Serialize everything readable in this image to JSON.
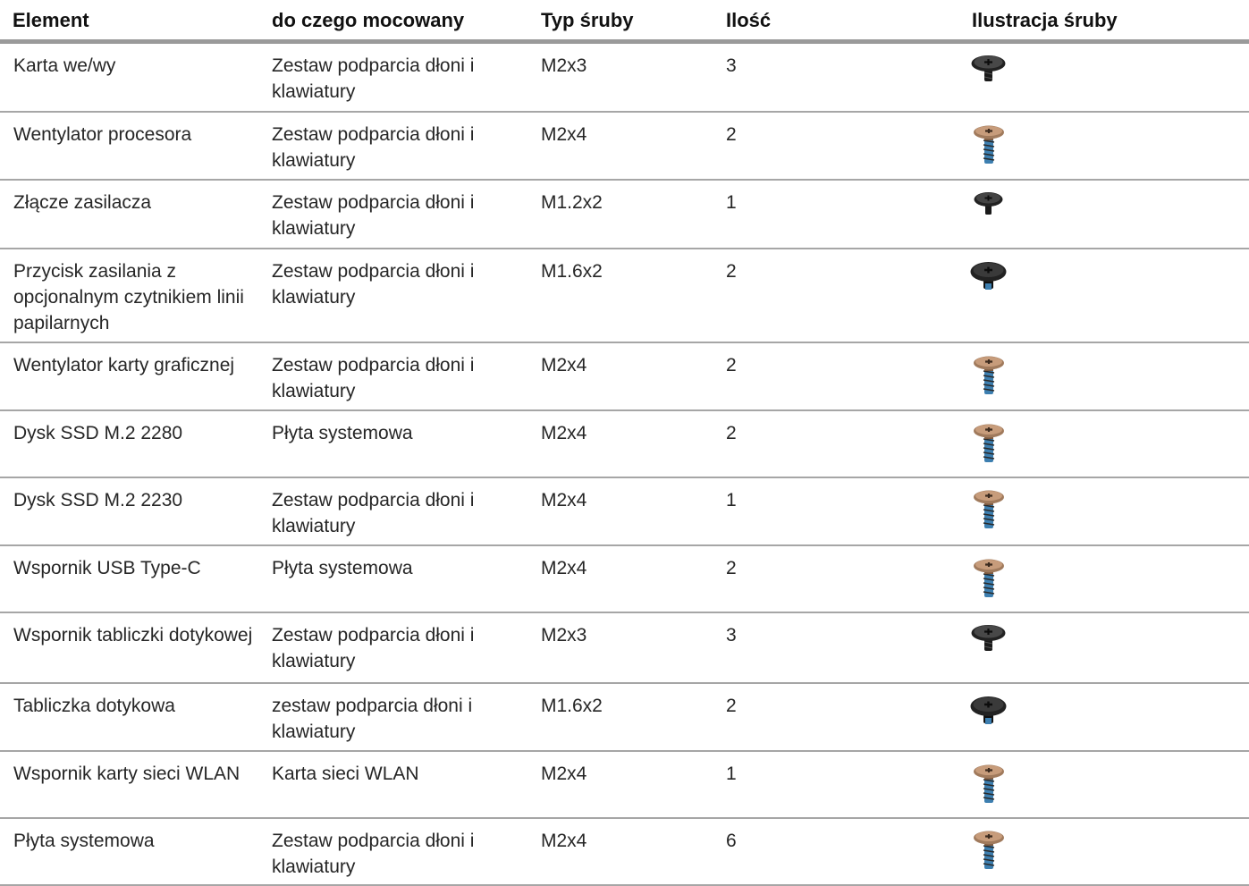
{
  "headers": {
    "element": "Element",
    "attached_to": "do czego mocowany",
    "screw_type": "Typ śruby",
    "quantity": "Ilość",
    "illustration": "Ilustracja śruby"
  },
  "rows": [
    {
      "element": "Karta we/wy",
      "attached_to": "Zestaw podparcia dłoni i klawiatury",
      "screw_type": "M2x3",
      "quantity": "3",
      "icon": "screw-black-short-icon"
    },
    {
      "element": "Wentylator procesora",
      "attached_to": "Zestaw podparcia dłoni i klawiatury",
      "screw_type": "M2x4",
      "quantity": "2",
      "icon": "screw-bronze-long-icon"
    },
    {
      "element": "Złącze zasilacza",
      "attached_to": "Zestaw podparcia dłoni i klawiatury",
      "screw_type": "M1.2x2",
      "quantity": "1",
      "icon": "screw-black-small-icon"
    },
    {
      "element": "Przycisk zasilania z opcjonalnym czytnikiem linii papilarnych",
      "attached_to": "Zestaw podparcia dłoni i klawiatury",
      "screw_type": "M1.6x2",
      "quantity": "2",
      "icon": "screw-black-wide-icon"
    },
    {
      "element": "Wentylator karty graficznej",
      "attached_to": "Zestaw podparcia dłoni i klawiatury",
      "screw_type": "M2x4",
      "quantity": "2",
      "icon": "screw-bronze-long-icon"
    },
    {
      "element": "Dysk SSD M.2 2280",
      "attached_to": "Płyta systemowa",
      "screw_type": "M2x4",
      "quantity": "2",
      "icon": "screw-bronze-long-icon"
    },
    {
      "element": "Dysk SSD M.2 2230",
      "attached_to": "Zestaw podparcia dłoni i klawiatury",
      "screw_type": "M2x4",
      "quantity": "1",
      "icon": "screw-bronze-long-icon"
    },
    {
      "element": "Wspornik USB Type-C",
      "attached_to": "Płyta systemowa",
      "screw_type": "M2x4",
      "quantity": "2",
      "icon": "screw-bronze-long-icon"
    },
    {
      "element": "Wspornik tabliczki dotykowej",
      "attached_to": "Zestaw podparcia dłoni i klawiatury",
      "screw_type": "M2x3",
      "quantity": "3",
      "icon": "screw-black-short-icon"
    },
    {
      "element": "Tabliczka dotykowa",
      "attached_to": "zestaw podparcia dłoni i klawiatury",
      "screw_type": "M1.6x2",
      "quantity": "2",
      "icon": "screw-black-wide-icon"
    },
    {
      "element": "Wspornik karty sieci WLAN",
      "attached_to": "Karta sieci WLAN",
      "screw_type": "M2x4",
      "quantity": "1",
      "icon": "screw-bronze-long-icon"
    },
    {
      "element": "Płyta systemowa",
      "attached_to": "Zestaw podparcia dłoni i klawiatury",
      "screw_type": "M2x4",
      "quantity": "6",
      "icon": "screw-bronze-long-icon"
    }
  ],
  "colors": {
    "black_screw": "#222222",
    "bronze_screw": "#a07a5c",
    "blue_thread": "#3d7fb0",
    "rule": "#9a9a9a"
  }
}
